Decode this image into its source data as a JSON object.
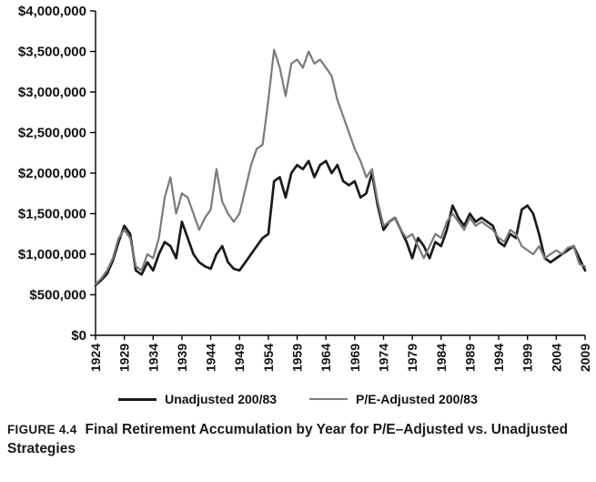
{
  "figure": {
    "caption_label": "FIGURE 4.4",
    "caption_title": "Final Retirement Accumulation by Year for P/E–Adjusted vs. Unadjusted Strategies"
  },
  "legend": {
    "items": [
      {
        "label": "Unadjusted 200/83",
        "color": "#1a1a1a",
        "thickness": 3
      },
      {
        "label": "P/E-Adjusted 200/83",
        "color": "#7a7a7a",
        "thickness": 2.5
      }
    ]
  },
  "chart_data": {
    "type": "line",
    "title": "",
    "xlabel": "",
    "ylabel": "",
    "grid": false,
    "legend_position": "bottom",
    "ylim": [
      0,
      4000000
    ],
    "y_ticks": [
      {
        "value": 0,
        "label": "$0"
      },
      {
        "value": 500000,
        "label": "$500,000"
      },
      {
        "value": 1000000,
        "label": "$1,000,000"
      },
      {
        "value": 1500000,
        "label": "$1,500,000"
      },
      {
        "value": 2000000,
        "label": "$2,000,000"
      },
      {
        "value": 2500000,
        "label": "$2,500,000"
      },
      {
        "value": 3000000,
        "label": "$3,000,000"
      },
      {
        "value": 3500000,
        "label": "$3,500,000"
      },
      {
        "value": 4000000,
        "label": "$4,000,000"
      }
    ],
    "x_ticks": [
      1924,
      1929,
      1934,
      1939,
      1944,
      1949,
      1954,
      1959,
      1964,
      1969,
      1974,
      1979,
      1984,
      1989,
      1994,
      1999,
      2004,
      2009
    ],
    "years": [
      1924,
      1925,
      1926,
      1927,
      1928,
      1929,
      1930,
      1931,
      1932,
      1933,
      1934,
      1935,
      1936,
      1937,
      1938,
      1939,
      1940,
      1941,
      1942,
      1943,
      1944,
      1945,
      1946,
      1947,
      1948,
      1949,
      1950,
      1951,
      1952,
      1953,
      1954,
      1955,
      1956,
      1957,
      1958,
      1959,
      1960,
      1961,
      1962,
      1963,
      1964,
      1965,
      1966,
      1967,
      1968,
      1969,
      1970,
      1971,
      1972,
      1973,
      1974,
      1975,
      1976,
      1977,
      1978,
      1979,
      1980,
      1981,
      1982,
      1983,
      1984,
      1985,
      1986,
      1987,
      1988,
      1989,
      1990,
      1991,
      1992,
      1993,
      1994,
      1995,
      1996,
      1997,
      1998,
      1999,
      2000,
      2001,
      2002,
      2003,
      2004,
      2005,
      2006,
      2007,
      2008,
      2009
    ],
    "series": [
      {
        "name": "Unadjusted 200/83",
        "color": "#1a1a1a",
        "stroke_width": 2.7,
        "values": [
          620000,
          680000,
          760000,
          920000,
          1150000,
          1350000,
          1250000,
          800000,
          750000,
          900000,
          800000,
          1000000,
          1150000,
          1100000,
          950000,
          1400000,
          1200000,
          1000000,
          900000,
          850000,
          820000,
          1000000,
          1100000,
          900000,
          820000,
          800000,
          900000,
          1000000,
          1100000,
          1200000,
          1250000,
          1900000,
          1950000,
          1700000,
          2000000,
          2100000,
          2050000,
          2150000,
          1950000,
          2100000,
          2150000,
          2000000,
          2100000,
          1900000,
          1850000,
          1900000,
          1700000,
          1750000,
          2000000,
          1600000,
          1300000,
          1400000,
          1450000,
          1300000,
          1150000,
          950000,
          1200000,
          1100000,
          950000,
          1150000,
          1100000,
          1300000,
          1600000,
          1450000,
          1350000,
          1500000,
          1400000,
          1450000,
          1400000,
          1350000,
          1150000,
          1100000,
          1250000,
          1200000,
          1550000,
          1600000,
          1500000,
          1250000,
          950000,
          900000,
          950000,
          1000000,
          1050000,
          1100000,
          950000,
          800000
        ]
      },
      {
        "name": "P/E-Adjusted 200/83",
        "color": "#7a7a7a",
        "stroke_width": 2.2,
        "values": [
          630000,
          700000,
          800000,
          950000,
          1200000,
          1300000,
          1200000,
          850000,
          800000,
          1000000,
          950000,
          1200000,
          1700000,
          1950000,
          1500000,
          1750000,
          1700000,
          1500000,
          1300000,
          1450000,
          1550000,
          2050000,
          1650000,
          1500000,
          1400000,
          1500000,
          1800000,
          2100000,
          2300000,
          2350000,
          2900000,
          3520000,
          3300000,
          2950000,
          3350000,
          3400000,
          3300000,
          3500000,
          3350000,
          3400000,
          3300000,
          3200000,
          2900000,
          2700000,
          2500000,
          2300000,
          2150000,
          1950000,
          2050000,
          1650000,
          1350000,
          1400000,
          1450000,
          1300000,
          1200000,
          1250000,
          1100000,
          950000,
          1100000,
          1250000,
          1200000,
          1400000,
          1500000,
          1400000,
          1300000,
          1450000,
          1350000,
          1400000,
          1350000,
          1300000,
          1200000,
          1150000,
          1300000,
          1250000,
          1100000,
          1050000,
          1000000,
          1100000,
          950000,
          1000000,
          1050000,
          1000000,
          1080000,
          1100000,
          880000,
          850000
        ]
      }
    ]
  }
}
